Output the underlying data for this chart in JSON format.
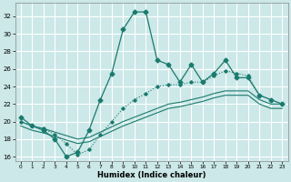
{
  "title": "",
  "xlabel": "Humidex (Indice chaleur)",
  "xlim": [
    -0.5,
    23.5
  ],
  "ylim": [
    15.5,
    33.5
  ],
  "yticks": [
    16,
    18,
    20,
    22,
    24,
    26,
    28,
    30,
    32
  ],
  "xticks": [
    0,
    1,
    2,
    3,
    4,
    5,
    6,
    7,
    8,
    9,
    10,
    11,
    12,
    13,
    14,
    15,
    16,
    17,
    18,
    19,
    20,
    21,
    22,
    23
  ],
  "background_color": "#cce8e8",
  "grid_color": "#ffffff",
  "line_color": "#1a7a6e",
  "series_main_x": [
    0,
    1,
    2,
    3,
    4,
    5,
    6,
    7,
    8,
    9,
    10,
    11,
    12,
    13,
    14,
    15,
    16,
    17,
    18,
    19,
    20,
    21,
    22,
    23
  ],
  "series_main_y": [
    20.5,
    19.5,
    19.0,
    18.0,
    16.0,
    16.5,
    19.0,
    22.5,
    25.5,
    30.5,
    32.5,
    32.5,
    27.0,
    26.5,
    24.5,
    26.5,
    24.5,
    25.5,
    27.0,
    25.0,
    25.0,
    23.0,
    22.5,
    22.0
  ],
  "series_dot_x": [
    0,
    1,
    2,
    3,
    4,
    5,
    6,
    7,
    8,
    9,
    10,
    11,
    12,
    13,
    14,
    15,
    16,
    17,
    18,
    19,
    20,
    21,
    22,
    23
  ],
  "series_dot_y": [
    20.0,
    19.5,
    19.2,
    18.5,
    17.5,
    16.2,
    16.8,
    18.5,
    20.0,
    21.5,
    22.5,
    23.2,
    24.0,
    24.2,
    24.2,
    24.5,
    24.5,
    25.2,
    25.8,
    25.5,
    25.2,
    23.0,
    22.5,
    22.0
  ],
  "series_lo1_x": [
    0,
    1,
    2,
    3,
    4,
    5,
    6,
    7,
    8,
    9,
    10,
    11,
    12,
    13,
    14,
    15,
    16,
    17,
    18,
    19,
    20,
    21,
    22,
    23
  ],
  "series_lo1_y": [
    20.0,
    19.5,
    19.2,
    18.8,
    18.4,
    18.0,
    18.2,
    18.8,
    19.4,
    20.0,
    20.5,
    21.0,
    21.5,
    22.0,
    22.2,
    22.5,
    22.8,
    23.2,
    23.5,
    23.5,
    23.5,
    22.5,
    22.0,
    22.0
  ],
  "series_lo2_x": [
    0,
    1,
    2,
    3,
    4,
    5,
    6,
    7,
    8,
    9,
    10,
    11,
    12,
    13,
    14,
    15,
    16,
    17,
    18,
    19,
    20,
    21,
    22,
    23
  ],
  "series_lo2_y": [
    19.5,
    19.0,
    18.7,
    18.3,
    17.9,
    17.5,
    17.7,
    18.3,
    18.9,
    19.5,
    20.0,
    20.5,
    21.0,
    21.5,
    21.7,
    22.0,
    22.3,
    22.7,
    23.0,
    23.0,
    23.0,
    22.0,
    21.5,
    21.5
  ]
}
